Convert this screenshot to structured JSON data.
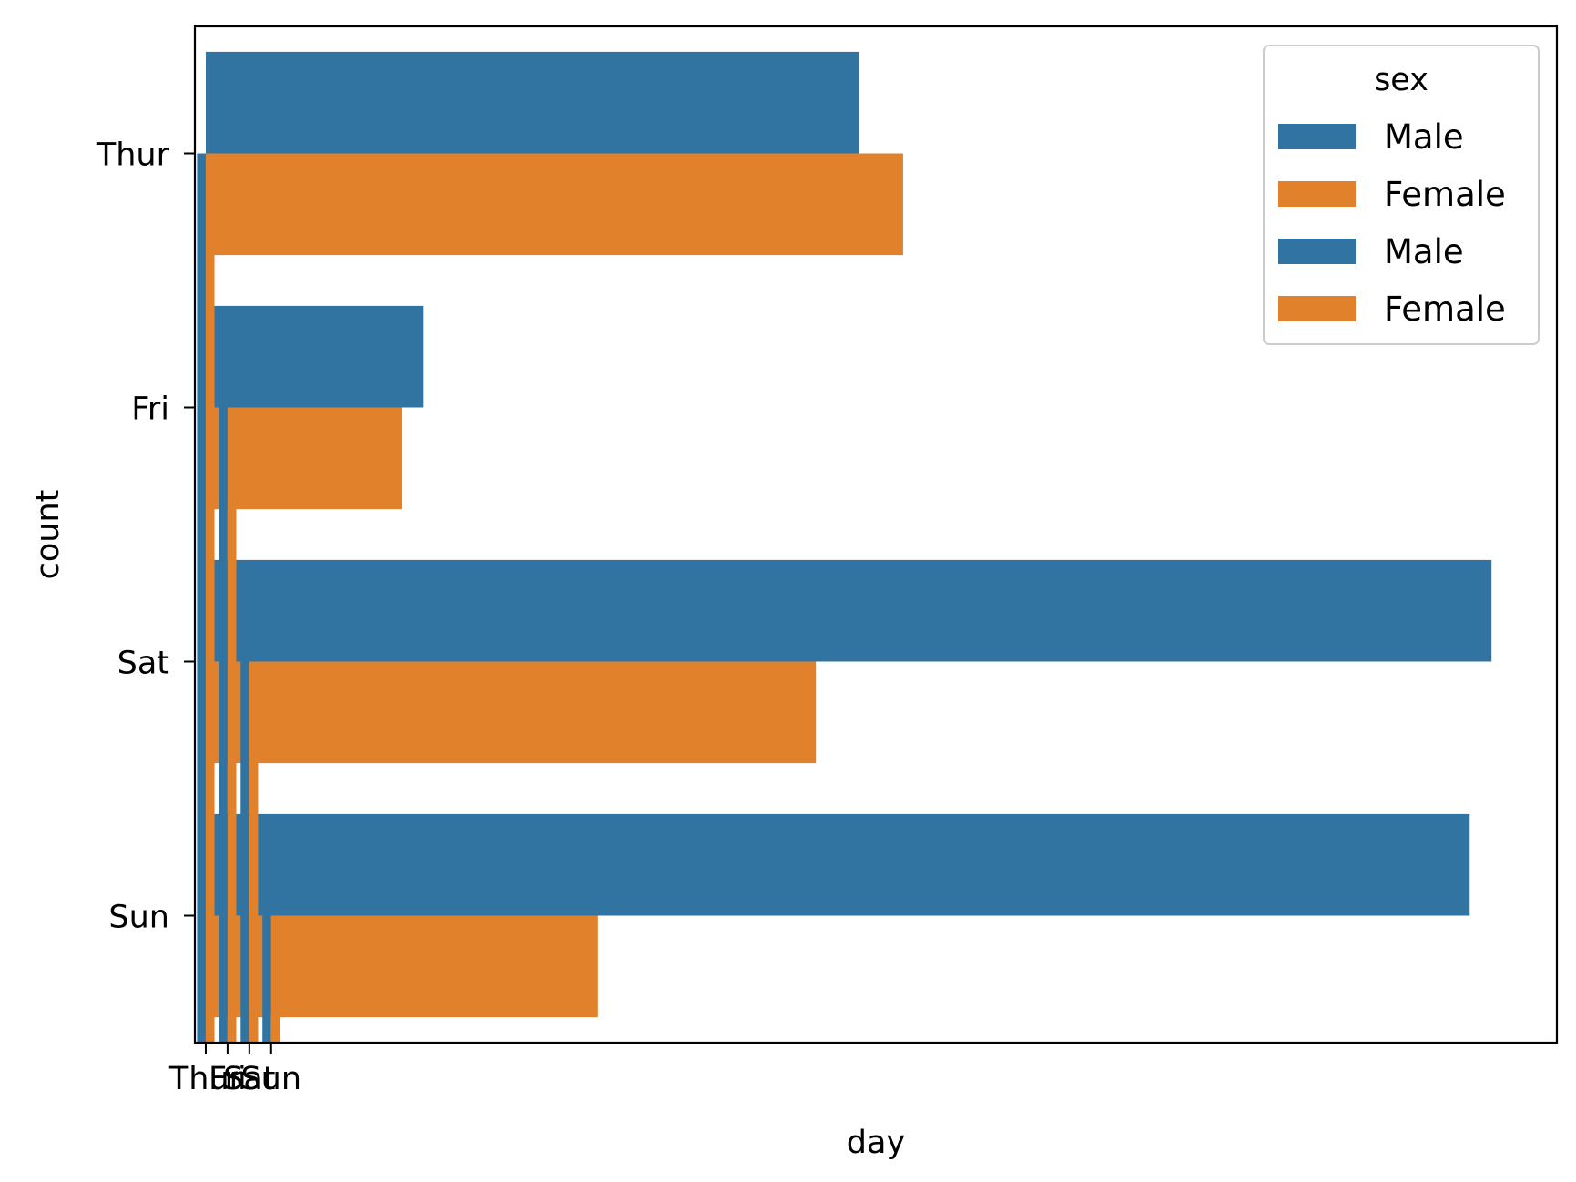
{
  "chart_data": {
    "type": "bar",
    "orientation": "horizontal",
    "xlabel": "day",
    "ylabel": "count",
    "categories": [
      "Thur",
      "Fri",
      "Sat",
      "Sun"
    ],
    "x_tick_labels": [
      "Thur",
      "Fri",
      "Sat",
      "Sun"
    ],
    "xlim": [
      -0.5,
      62
    ],
    "series": [
      {
        "name": "Male",
        "color": "#3274a1",
        "values": [
          30,
          10,
          59,
          58
        ]
      },
      {
        "name": "Female",
        "color": "#e1812c",
        "values": [
          32,
          9,
          28,
          18
        ]
      }
    ],
    "overlay_series": [
      {
        "color": "#3274a1",
        "values": [
          0,
          1,
          2,
          3
        ]
      },
      {
        "color": "#e1812c",
        "values": [
          0,
          1,
          2,
          3
        ]
      }
    ],
    "legend": {
      "title": "sex",
      "placement": "top-right",
      "entries": [
        {
          "label": "Male",
          "color": "#3274a1"
        },
        {
          "label": "Female",
          "color": "#e1812c"
        },
        {
          "label": "Male",
          "color": "#3274a1"
        },
        {
          "label": "Female",
          "color": "#e1812c"
        }
      ]
    },
    "grid": false
  }
}
